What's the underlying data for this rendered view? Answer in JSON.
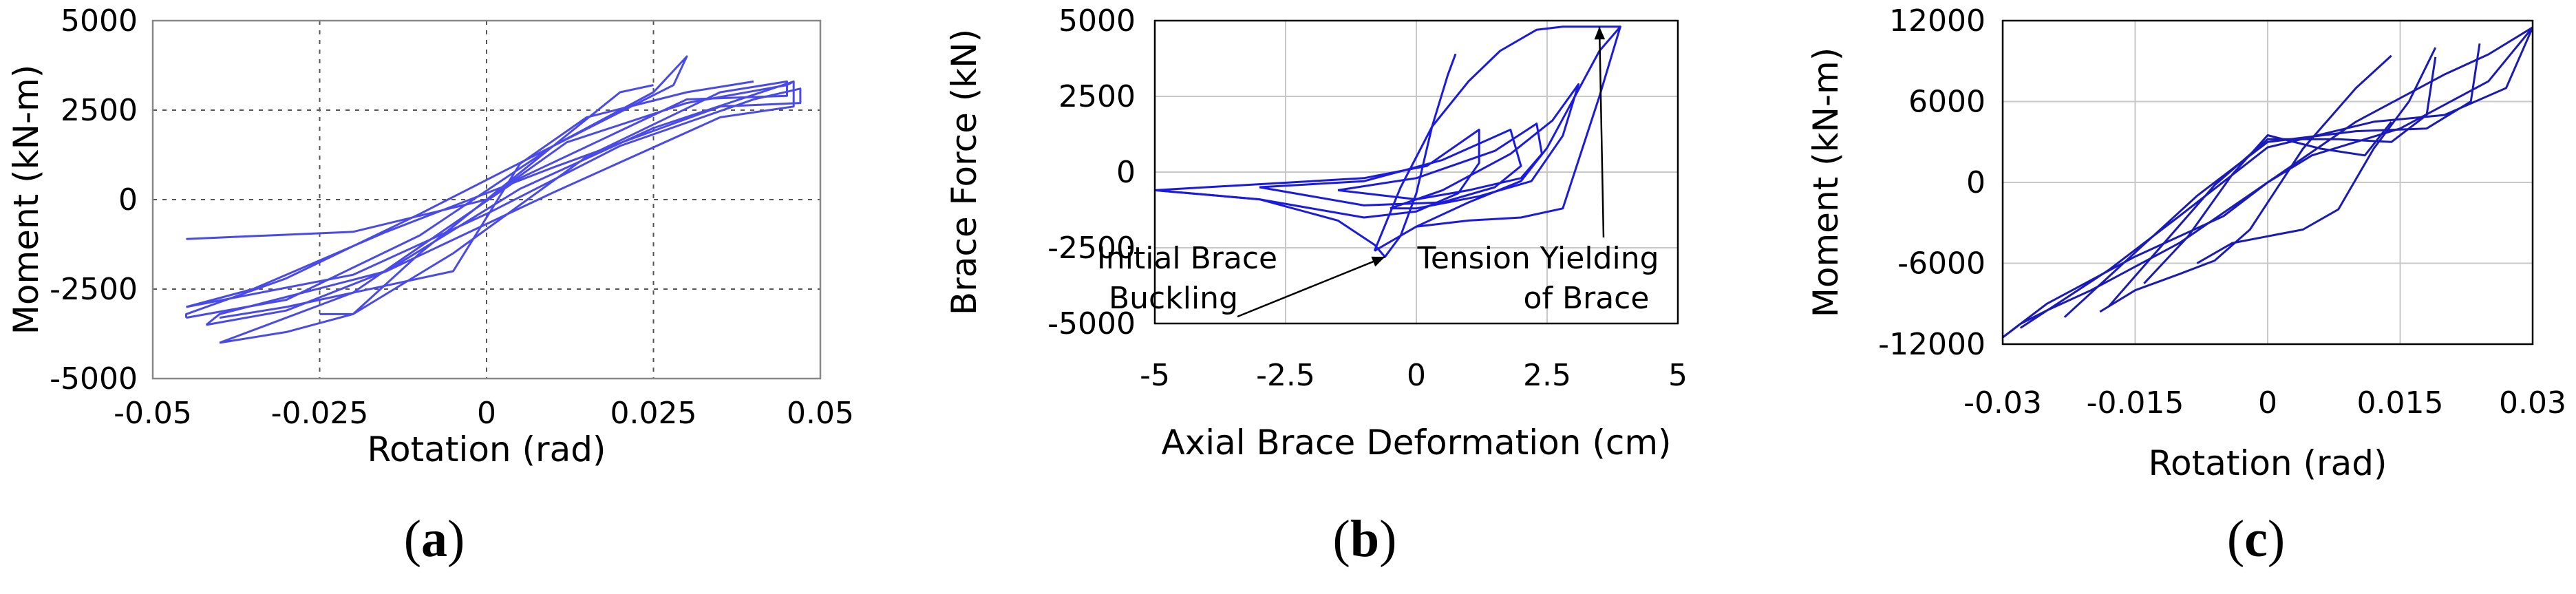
{
  "chart_data": [
    {
      "id": "a",
      "type": "line",
      "caption_open": "(",
      "caption_letter": "a",
      "caption_close": ")",
      "xlabel": "Rotation (rad)",
      "ylabel": "Moment (kN-m)",
      "xlim": [
        -0.05,
        0.05
      ],
      "ylim": [
        -5000,
        5000
      ],
      "xticks": [
        -0.05,
        -0.025,
        0,
        0.025,
        0.05
      ],
      "xtick_labels": [
        "-0.05",
        "-0.025",
        "0",
        "0.025",
        "0.05"
      ],
      "yticks": [
        -5000,
        -2500,
        0,
        2500,
        5000
      ],
      "ytick_labels": [
        "-5000",
        "-2500",
        "0",
        "2500",
        "5000"
      ],
      "grid": "dotted",
      "color": "#4a4aea",
      "series": [
        {
          "x": [
            -0.045,
            -0.03,
            -0.01,
            0.01,
            0.025,
            0.03,
            0.028,
            0.01,
            -0.01,
            -0.03,
            -0.045,
            -0.045
          ],
          "y": [
            -3300,
            -2800,
            -1000,
            1500,
            3000,
            4000,
            3200,
            1500,
            -400,
            -2200,
            -3200,
            -3300
          ]
        },
        {
          "x": [
            -0.045,
            -0.02,
            0,
            0.02,
            0.04,
            0.047,
            0.047,
            0.035,
            0.01,
            -0.015,
            -0.035,
            -0.045
          ],
          "y": [
            -3000,
            -2100,
            -400,
            1500,
            2800,
            3100,
            2700,
            2600,
            900,
            -900,
            -2500,
            -3000
          ]
        },
        {
          "x": [
            -0.042,
            -0.03,
            -0.015,
            0.005,
            0.025,
            0.046,
            0.046,
            0.035,
            0.01,
            -0.015,
            -0.04,
            -0.042
          ],
          "y": [
            -3500,
            -3100,
            -2000,
            300,
            2000,
            3300,
            2600,
            2300,
            200,
            -2000,
            -3200,
            -3500
          ]
        },
        {
          "x": [
            -0.04,
            -0.03,
            -0.02,
            -0.005,
            0.015,
            0.035,
            0.045,
            0.045,
            0.03,
            0.005,
            -0.02,
            -0.04
          ],
          "y": [
            -4000,
            -3700,
            -3200,
            -1500,
            1200,
            3000,
            3300,
            2900,
            2800,
            600,
            -2600,
            -4000
          ]
        },
        {
          "x": [
            -0.025,
            -0.02,
            -0.01,
            0,
            0.01,
            0.02,
            0.025
          ],
          "y": [
            -3200,
            -3200,
            -1500,
            0,
            1500,
            3000,
            3200
          ]
        },
        {
          "x": [
            -0.04,
            -0.03,
            -0.02,
            -0.015,
            -0.005,
            0.005,
            0.015,
            0.03,
            0.04
          ],
          "y": [
            -3300,
            -3000,
            -2600,
            -2400,
            -2000,
            1000,
            2300,
            3000,
            3300
          ]
        },
        {
          "x": [
            -0.045,
            -0.02,
            0,
            0.012,
            0.03,
            0.045,
            0.046
          ],
          "y": [
            -1100,
            -900,
            0,
            1600,
            2700,
            3200,
            3300
          ]
        }
      ]
    },
    {
      "id": "b",
      "type": "line",
      "caption_open": "(",
      "caption_letter": "b",
      "caption_close": ")",
      "xlabel": "Axial Brace Deformation (cm)",
      "ylabel": "Brace Force (kN)",
      "xlim": [
        -5,
        5
      ],
      "ylim": [
        -5000,
        5000
      ],
      "xticks": [
        -5,
        -2.5,
        0,
        2.5,
        5
      ],
      "xtick_labels": [
        "-5",
        "-2.5",
        "0",
        "2.5",
        "5"
      ],
      "yticks": [
        -5000,
        -2500,
        0,
        2500,
        5000
      ],
      "ytick_labels": [
        "-5000",
        "-2500",
        "0",
        "2500",
        "5000"
      ],
      "grid": "solid",
      "color": "#1a1ae0",
      "annotations": [
        {
          "lines": [
            "Initial Brace",
            "Buckling"
          ],
          "point": [
            -0.6,
            -2800
          ]
        },
        {
          "lines": [
            "Tension Yielding",
            "of Brace"
          ],
          "point": [
            3.5,
            4800
          ]
        }
      ],
      "series": [
        {
          "x": [
            -5,
            -3,
            -1.5,
            -0.8,
            -0.6,
            -0.3,
            0,
            0.3,
            0.6,
            0.75
          ],
          "y": [
            -600,
            -900,
            -1600,
            -2400,
            -2800,
            -2100,
            -700,
            1500,
            3200,
            3900
          ]
        },
        {
          "x": [
            -5,
            -3,
            -1,
            0.2,
            1.2,
            1.2,
            0.8,
            0,
            -1,
            -3,
            -5
          ],
          "y": [
            -600,
            -400,
            -200,
            200,
            1400,
            300,
            -700,
            -1300,
            -1500,
            -900,
            -600
          ]
        },
        {
          "x": [
            -3,
            -1,
            0.5,
            1.8,
            2,
            1.5,
            0.5,
            -1,
            -3
          ],
          "y": [
            -500,
            -300,
            400,
            1400,
            200,
            -500,
            -1000,
            -1100,
            -500
          ]
        },
        {
          "x": [
            -1.5,
            0,
            1.5,
            2.3,
            2.4,
            2,
            1,
            0,
            -1.5
          ],
          "y": [
            -600,
            -200,
            700,
            1600,
            600,
            -200,
            -600,
            -900,
            -600
          ]
        },
        {
          "x": [
            -0.5,
            0.5,
            1.8,
            2.6,
            3.1,
            2.8,
            2.2,
            1.2,
            0,
            -0.5
          ],
          "y": [
            -1200,
            -600,
            600,
            1700,
            2900,
            1200,
            -300,
            -800,
            -1200,
            -1200
          ]
        },
        {
          "x": [
            -0.8,
            0,
            1,
            2,
            2.5,
            3,
            3.5,
            3.9,
            3.9,
            3.5,
            2.8,
            2,
            1,
            0,
            -0.8
          ],
          "y": [
            -2600,
            -1800,
            -1000,
            -300,
            800,
            2400,
            4000,
            4800,
            4800,
            2500,
            -1200,
            -1500,
            -1600,
            -1800,
            -2600
          ]
        },
        {
          "x": [
            -0.8,
            -0.3,
            0.3,
            1,
            1.6,
            2.3,
            2.8,
            3.4,
            3.9
          ],
          "y": [
            -2600,
            -500,
            1500,
            3000,
            4000,
            4700,
            4800,
            4800,
            4800
          ]
        }
      ]
    },
    {
      "id": "c",
      "type": "line",
      "caption_open": "(",
      "caption_letter": "c",
      "caption_close": ")",
      "xlabel": "Rotation (rad)",
      "ylabel": "Moment (kN-m)",
      "xlim": [
        -0.03,
        0.03
      ],
      "ylim": [
        -12000,
        12000
      ],
      "xticks": [
        -0.03,
        -0.015,
        0,
        0.015,
        0.03
      ],
      "xtick_labels": [
        "-0.03",
        "-0.015",
        "0",
        "0.015",
        "0.03"
      ],
      "yticks": [
        -12000,
        -6000,
        0,
        6000,
        12000
      ],
      "ytick_labels": [
        "-12000",
        "-6000",
        "0",
        "6000",
        "12000"
      ],
      "grid": "solid",
      "color": "#1a1ab8",
      "series": [
        {
          "x": [
            -0.03,
            -0.028,
            -0.025,
            -0.02,
            -0.01,
            0,
            0.01,
            0.02,
            0.025,
            0.03
          ],
          "y": [
            -11500,
            -10500,
            -9500,
            -8000,
            -4500,
            0,
            4500,
            8000,
            9500,
            11500
          ]
        },
        {
          "x": [
            0.03,
            0.025,
            0.015,
            0.005,
            0,
            -0.005,
            -0.015,
            -0.025,
            -0.028,
            -0.03
          ],
          "y": [
            11500,
            7500,
            4000,
            2000,
            0,
            -2500,
            -5500,
            -9000,
            -10500,
            -11500
          ]
        },
        {
          "x": [
            -0.028,
            -0.018,
            -0.01,
            0,
            0.012,
            0.02,
            0.027,
            0.03
          ],
          "y": [
            -10800,
            -6500,
            -2500,
            2600,
            4500,
            5000,
            7000,
            11500
          ]
        },
        {
          "x": [
            -0.023,
            -0.015,
            -0.008,
            0,
            0.01,
            0.018,
            0.023,
            0.024
          ],
          "y": [
            -10000,
            -5200,
            -1000,
            3000,
            3800,
            4000,
            6000,
            10300
          ]
        },
        {
          "x": [
            -0.018,
            -0.012,
            -0.006,
            0,
            0.008,
            0.014,
            0.018,
            0.019
          ],
          "y": [
            -9200,
            -4700,
            -200,
            3200,
            3200,
            3000,
            5000,
            9300
          ]
        },
        {
          "x": [
            -0.014,
            -0.009,
            -0.004,
            0,
            0.006,
            0.011,
            0.014
          ],
          "y": [
            -7500,
            -4000,
            600,
            3500,
            2500,
            2000,
            4500
          ]
        },
        {
          "x": [
            -0.008,
            -0.004,
            0,
            0.004,
            0.008,
            0.012,
            0.016,
            0.019
          ],
          "y": [
            -6000,
            -4500,
            -4000,
            -3500,
            -2000,
            2500,
            6000,
            10000
          ]
        },
        {
          "x": [
            -0.019,
            -0.015,
            -0.01,
            -0.006,
            -0.002,
            0.004,
            0.01,
            0.014
          ],
          "y": [
            -9600,
            -8000,
            -6800,
            -5800,
            -3500,
            2500,
            7000,
            9400
          ]
        }
      ]
    }
  ]
}
